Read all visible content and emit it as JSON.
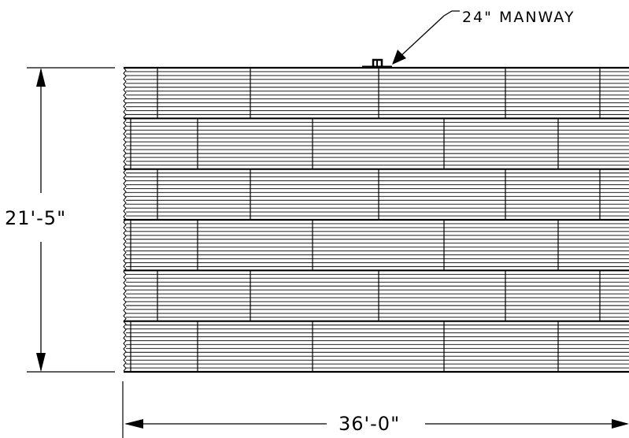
{
  "drawing": {
    "callout": {
      "label": "24\" MANWAY"
    },
    "dimensions": {
      "height": "21'-5\"",
      "width": "36'-0\""
    },
    "colors": {
      "ink": "#000000",
      "background": "#ffffff"
    },
    "structure": {
      "courses": 6,
      "icons": [
        "manway-icon",
        "arrow-icon"
      ]
    }
  }
}
